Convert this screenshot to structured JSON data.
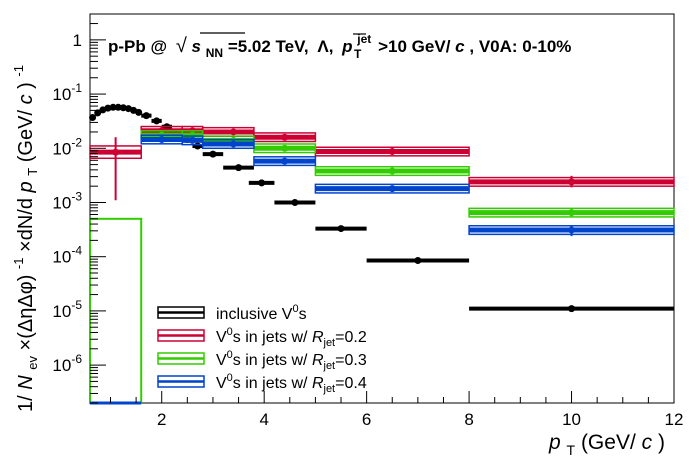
{
  "chart_data": {
    "type": "scatter",
    "title_parts": {
      "system": "p-Pb @",
      "sqrt": "√",
      "s": "s",
      "s_sub": "NN",
      "energy": "=5.02 TeV,",
      "particle": "Λ,",
      "p": "p",
      "p_sup": "jet",
      "p_sub": "T",
      "cut": ">10 GeV/",
      "c": "c",
      "centrality": ", V0A: 0-10%"
    },
    "xlabel": {
      "p": "p",
      "sub": "T",
      "unit": " (GeV/",
      "c": "c",
      "close": ")"
    },
    "ylabel": "1/N_ev×(ΔηΔφ)^-1×dN/dp_T (GeV/c)^-1",
    "ylabel_parts": {
      "one_over": "1/",
      "N": "N",
      "N_sub": "ev",
      "times": "×(ΔηΔφ)",
      "sup": "-1",
      "dNdp": "×dN/d",
      "p": "p",
      "p_sub": "T",
      "unit": "  (GeV/",
      "c": "c",
      "close": ")",
      "sup2": "-1"
    },
    "xlim": [
      0.6,
      12
    ],
    "ylim": [
      2e-07,
      3
    ],
    "ylog": true,
    "x_ticks": [
      "2",
      "4",
      "6",
      "8",
      "10",
      "12"
    ],
    "y_ticks": [
      {
        "mant": "1",
        "exp": ""
      },
      {
        "mant": "10",
        "exp": "-1"
      },
      {
        "mant": "10",
        "exp": "-2"
      },
      {
        "mant": "10",
        "exp": "-3"
      },
      {
        "mant": "10",
        "exp": "-4"
      },
      {
        "mant": "10",
        "exp": "-5"
      },
      {
        "mant": "10",
        "exp": "-6"
      }
    ],
    "legend": {
      "position": "bottom-left",
      "entries": [
        {
          "color": "#000000",
          "text": "inclusive V",
          "sup": "0",
          "tail": "s",
          "r": ""
        },
        {
          "color": "#cc0033",
          "text": "V",
          "sup": "0",
          "tail": "s in jets w/ ",
          "R": "R",
          "R_sub": "jet",
          "r": "=0.2"
        },
        {
          "color": "#33cc00",
          "text": "V",
          "sup": "0",
          "tail": "s in jets w/ ",
          "R": "R",
          "R_sub": "jet",
          "r": "=0.3"
        },
        {
          "color": "#0044cc",
          "text": "V",
          "sup": "0",
          "tail": "s in jets w/ ",
          "R": "R",
          "R_sub": "jet",
          "r": "=0.4"
        }
      ]
    },
    "series": [
      {
        "name": "inclusive V0s",
        "color": "#000000",
        "points": [
          {
            "x": 0.65,
            "xl": 0.6,
            "xh": 0.7,
            "y": 0.037
          },
          {
            "x": 0.75,
            "xl": 0.7,
            "xh": 0.8,
            "y": 0.045
          },
          {
            "x": 0.85,
            "xl": 0.8,
            "xh": 0.9,
            "y": 0.051
          },
          {
            "x": 0.95,
            "xl": 0.9,
            "xh": 1.0,
            "y": 0.055
          },
          {
            "x": 1.05,
            "xl": 1.0,
            "xh": 1.1,
            "y": 0.057
          },
          {
            "x": 1.15,
            "xl": 1.1,
            "xh": 1.2,
            "y": 0.057
          },
          {
            "x": 1.25,
            "xl": 1.2,
            "xh": 1.3,
            "y": 0.056
          },
          {
            "x": 1.35,
            "xl": 1.3,
            "xh": 1.4,
            "y": 0.054
          },
          {
            "x": 1.45,
            "xl": 1.4,
            "xh": 1.5,
            "y": 0.05
          },
          {
            "x": 1.55,
            "xl": 1.5,
            "xh": 1.6,
            "y": 0.046
          },
          {
            "x": 1.7,
            "xl": 1.6,
            "xh": 1.8,
            "y": 0.04
          },
          {
            "x": 1.9,
            "xl": 1.8,
            "xh": 2.0,
            "y": 0.032
          },
          {
            "x": 2.1,
            "xl": 2.0,
            "xh": 2.2,
            "y": 0.025
          },
          {
            "x": 2.3,
            "xl": 2.2,
            "xh": 2.4,
            "y": 0.019
          },
          {
            "x": 2.5,
            "xl": 2.4,
            "xh": 2.6,
            "y": 0.0145
          },
          {
            "x": 2.7,
            "xl": 2.6,
            "xh": 2.8,
            "y": 0.011
          },
          {
            "x": 3.0,
            "xl": 2.8,
            "xh": 3.2,
            "y": 0.0078
          },
          {
            "x": 3.5,
            "xl": 3.2,
            "xh": 3.8,
            "y": 0.0044
          },
          {
            "x": 3.95,
            "xl": 3.7,
            "xh": 4.2,
            "y": 0.0023
          },
          {
            "x": 4.6,
            "xl": 4.2,
            "xh": 5.0,
            "y": 0.001
          },
          {
            "x": 5.5,
            "xl": 5.0,
            "xh": 6.0,
            "y": 0.00033
          },
          {
            "x": 7.0,
            "xl": 6.0,
            "xh": 8.0,
            "y": 8.5e-05
          },
          {
            "x": 10.0,
            "xl": 8.0,
            "xh": 12.0,
            "y": 1.1e-05
          }
        ]
      },
      {
        "name": "V0s in jets w/ Rjet=0.2",
        "color": "#cc0033",
        "points": [
          {
            "x": 1.1,
            "xl": 0.6,
            "xh": 1.6,
            "y": 0.0085,
            "ylo": 0.0011,
            "yhi": 0.016,
            "sys": 0.3
          },
          {
            "x": 2.0,
            "xl": 1.6,
            "xh": 2.4,
            "y": 0.021,
            "ylo": 0.019,
            "yhi": 0.023,
            "sys": 0.2
          },
          {
            "x": 2.6,
            "xl": 2.4,
            "xh": 2.8,
            "y": 0.021,
            "ylo": 0.019,
            "yhi": 0.023,
            "sys": 0.2
          },
          {
            "x": 3.4,
            "xl": 2.8,
            "xh": 3.8,
            "y": 0.02,
            "ylo": 0.018,
            "yhi": 0.022,
            "sys": 0.2
          },
          {
            "x": 4.4,
            "xl": 3.8,
            "xh": 5.0,
            "y": 0.016,
            "ylo": 0.0145,
            "yhi": 0.0175,
            "sys": 0.2
          },
          {
            "x": 6.5,
            "xl": 5.0,
            "xh": 8.0,
            "y": 0.0087,
            "ylo": 0.0079,
            "yhi": 0.0095,
            "sys": 0.2
          },
          {
            "x": 10.0,
            "xl": 8.0,
            "xh": 12.0,
            "y": 0.0024,
            "ylo": 0.0019,
            "yhi": 0.0031,
            "sys": 0.2
          }
        ]
      },
      {
        "name": "V0s in jets w/ Rjet=0.3",
        "color": "#33cc00",
        "points": [
          {
            "x": 1.1,
            "xl": 0.6,
            "xh": 1.6,
            "y": 0.0005,
            "ylo": 0.0005,
            "yhi": 0.0005,
            "sys": 0
          },
          {
            "x": 2.0,
            "xl": 1.6,
            "xh": 2.4,
            "y": 0.0175,
            "ylo": 0.016,
            "yhi": 0.019,
            "sys": 0.2
          },
          {
            "x": 2.6,
            "xl": 2.4,
            "xh": 2.8,
            "y": 0.0175,
            "ylo": 0.016,
            "yhi": 0.019,
            "sys": 0.2
          },
          {
            "x": 3.4,
            "xl": 2.8,
            "xh": 3.8,
            "y": 0.014,
            "ylo": 0.0128,
            "yhi": 0.0152,
            "sys": 0.2
          },
          {
            "x": 4.4,
            "xl": 3.8,
            "xh": 5.0,
            "y": 0.01,
            "ylo": 0.0092,
            "yhi": 0.0108,
            "sys": 0.2
          },
          {
            "x": 6.5,
            "xl": 5.0,
            "xh": 8.0,
            "y": 0.0038,
            "ylo": 0.0035,
            "yhi": 0.0041,
            "sys": 0.2
          },
          {
            "x": 10.0,
            "xl": 8.0,
            "xh": 12.0,
            "y": 0.00065,
            "ylo": 0.00053,
            "yhi": 0.00078,
            "sys": 0.2
          }
        ]
      },
      {
        "name": "V0s in jets w/ Rjet=0.4",
        "color": "#0044cc",
        "points": [
          {
            "x": 2.0,
            "xl": 1.6,
            "xh": 2.4,
            "y": 0.0145,
            "ylo": 0.0132,
            "yhi": 0.0158,
            "sys": 0.2
          },
          {
            "x": 2.6,
            "xl": 2.4,
            "xh": 2.8,
            "y": 0.014,
            "ylo": 0.0128,
            "yhi": 0.0152,
            "sys": 0.2
          },
          {
            "x": 3.4,
            "xl": 2.8,
            "xh": 3.8,
            "y": 0.012,
            "ylo": 0.011,
            "yhi": 0.013,
            "sys": 0.2
          },
          {
            "x": 4.4,
            "xl": 3.8,
            "xh": 5.0,
            "y": 0.0058,
            "ylo": 0.0053,
            "yhi": 0.0063,
            "sys": 0.2
          },
          {
            "x": 6.5,
            "xl": 5.0,
            "xh": 8.0,
            "y": 0.0018,
            "ylo": 0.00165,
            "yhi": 0.00195,
            "sys": 0.2
          },
          {
            "x": 10.0,
            "xl": 8.0,
            "xh": 12.0,
            "y": 0.00031,
            "ylo": 0.00024,
            "yhi": 0.00038,
            "sys": 0.2
          }
        ]
      }
    ]
  }
}
